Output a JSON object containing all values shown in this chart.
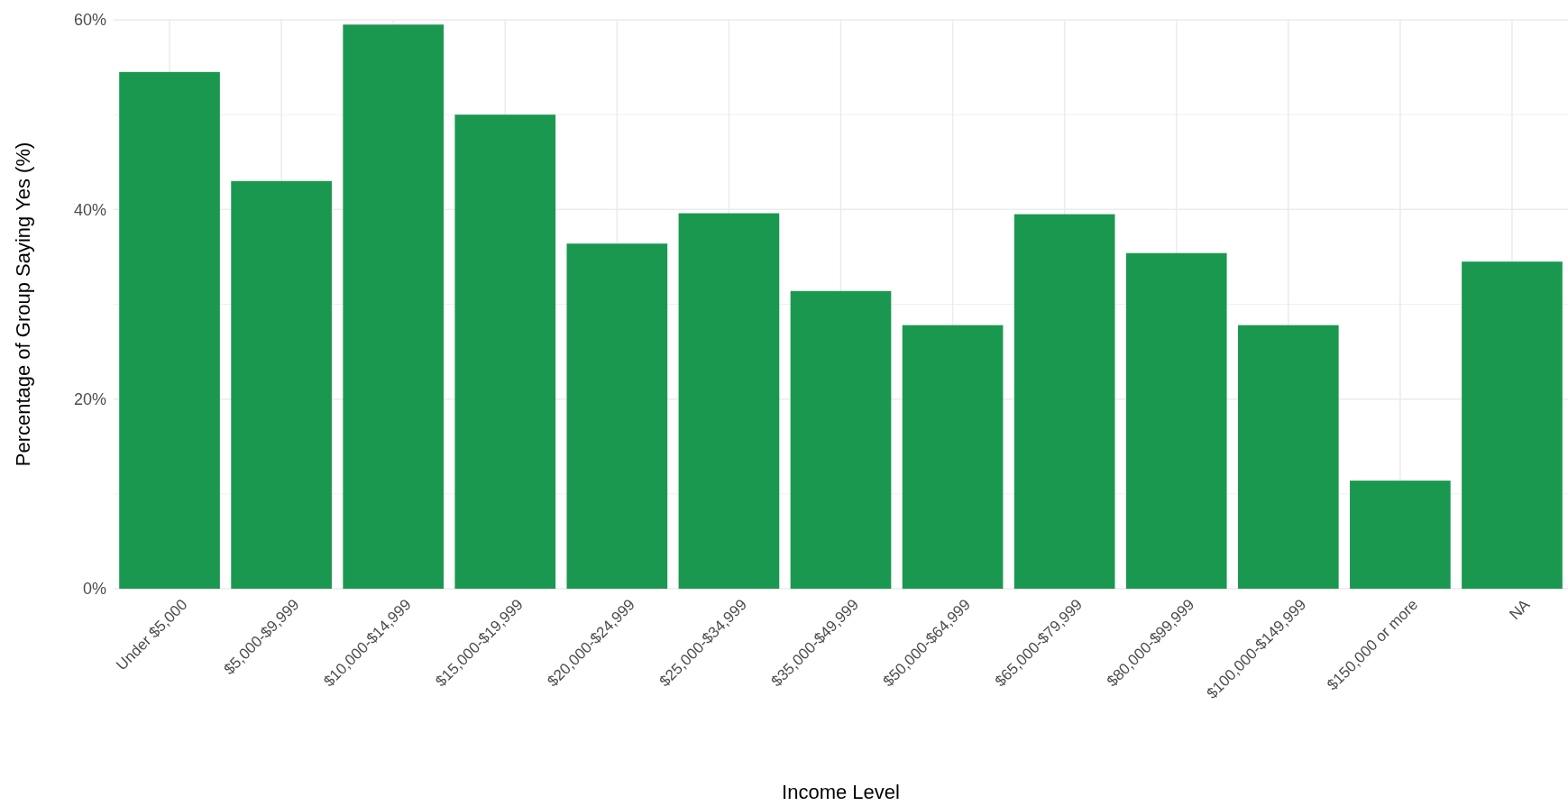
{
  "chart_data": {
    "type": "bar",
    "xlabel": "Income Level",
    "ylabel": "Percentage of Group Saying Yes (%)",
    "categories": [
      "Under $5,000",
      "$5,000-$9,999",
      "$10,000-$14,999",
      "$15,000-$19,999",
      "$20,000-$24,999",
      "$25,000-$34,999",
      "$35,000-$49,999",
      "$50,000-$64,999",
      "$65,000-$79,999",
      "$80,000-$99,999",
      "$100,000-$149,999",
      "$150,000 or more",
      "NA"
    ],
    "values": [
      54.5,
      43.0,
      59.5,
      50.0,
      36.4,
      39.6,
      31.4,
      27.8,
      39.5,
      35.4,
      27.8,
      11.4,
      34.5
    ],
    "color": "#1b9850",
    "ylim": [
      0,
      60
    ],
    "yticks": [
      {
        "value": 0,
        "label": "0%"
      },
      {
        "value": 20,
        "label": "20%"
      },
      {
        "value": 40,
        "label": "40%"
      },
      {
        "value": 60,
        "label": "60%"
      }
    ],
    "grid": true
  }
}
